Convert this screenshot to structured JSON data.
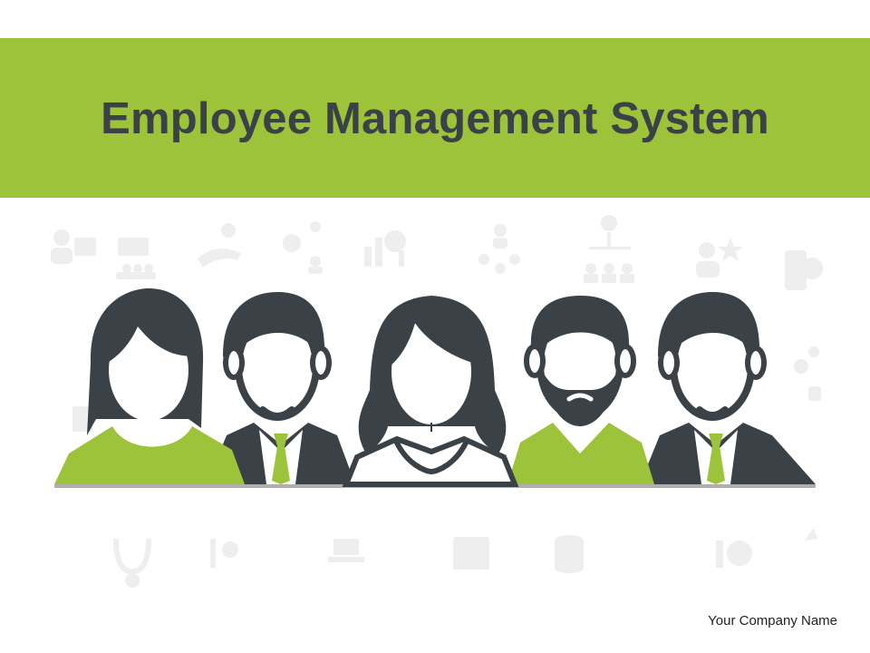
{
  "slide": {
    "title": "Employee Management System",
    "company": "Your Company Name"
  },
  "colors": {
    "accent_green": "#9dc33b",
    "dark": "#3a4247",
    "icon_gray": "#eeeeee"
  },
  "people": [
    {
      "name": "woman-short-hair",
      "shirt": "green"
    },
    {
      "name": "man-suit-tie",
      "shirt": "dark-suit"
    },
    {
      "name": "woman-long-hair",
      "shirt": "white-blouse"
    },
    {
      "name": "man-beard",
      "shirt": "green"
    },
    {
      "name": "man-suit-tie",
      "shirt": "dark-suit"
    }
  ],
  "background_icons": [
    "user-presentation-icon",
    "training-class-icon",
    "hand-care-icon",
    "gear-people-icon",
    "bar-chart-magnifier-icon",
    "team-cog-icon",
    "org-chart-icon",
    "star-team-icon",
    "mobile-user-icon",
    "stethoscope-icon",
    "tools-icon",
    "laptop-sync-icon",
    "document-icon",
    "database-icon",
    "head-gear-icon"
  ]
}
